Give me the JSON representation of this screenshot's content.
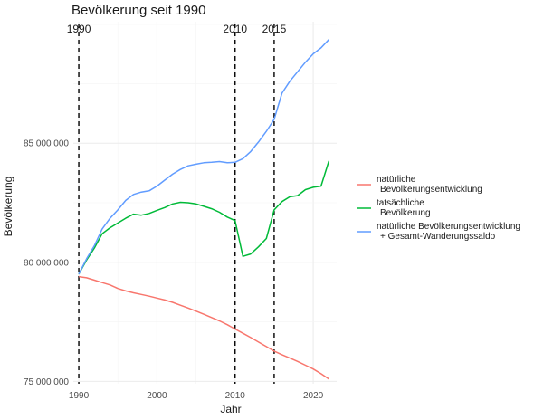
{
  "chart_data": {
    "type": "line",
    "title": "Bevölkerung seit 1990",
    "xlabel": "Jahr",
    "ylabel": "Bevölkerung",
    "xlim": [
      1989.3,
      2023
    ],
    "ylim": [
      74900000,
      90100000
    ],
    "x_ticks": [
      1990,
      2000,
      2010,
      2020
    ],
    "y_ticks": [
      75000000,
      80000000,
      85000000
    ],
    "y_tick_labels": [
      "75 000 000",
      "80 000 000",
      "85 000 000"
    ],
    "grid": true,
    "legend_position": "right",
    "vlines": [
      {
        "x": 1990,
        "label": "1990"
      },
      {
        "x": 2010,
        "label": "2010"
      },
      {
        "x": 2015,
        "label": "2015"
      }
    ],
    "series": [
      {
        "name": "natürliche Bevölkerungsentwicklung",
        "legend_lines": [
          "natürliche",
          "Bevölkerungsentwicklung"
        ],
        "color": "#F8766D",
        "x": [
          1990,
          1991,
          1992,
          1993,
          1994,
          1995,
          1996,
          1997,
          1998,
          1999,
          2000,
          2001,
          2002,
          2003,
          2004,
          2005,
          2006,
          2007,
          2008,
          2009,
          2010,
          2011,
          2012,
          2013,
          2014,
          2015,
          2016,
          2017,
          2018,
          2019,
          2020,
          2021,
          2022
        ],
        "values": [
          79400000,
          79350000,
          79250000,
          79150000,
          79050000,
          78900000,
          78800000,
          78720000,
          78650000,
          78580000,
          78500000,
          78420000,
          78320000,
          78200000,
          78080000,
          77950000,
          77820000,
          77680000,
          77540000,
          77380000,
          77200000,
          77020000,
          76840000,
          76650000,
          76460000,
          76270000,
          76120000,
          75980000,
          75840000,
          75680000,
          75520000,
          75320000,
          75100000
        ]
      },
      {
        "name": "tatsächliche Bevölkerung",
        "legend_lines": [
          "tatsächliche",
          "Bevölkerung"
        ],
        "color": "#00BA38",
        "x": [
          1990,
          1991,
          1992,
          1993,
          1994,
          1995,
          1996,
          1997,
          1998,
          1999,
          2000,
          2001,
          2002,
          2003,
          2004,
          2005,
          2006,
          2007,
          2008,
          2009,
          2010,
          2011,
          2012,
          2013,
          2014,
          2015,
          2016,
          2017,
          2018,
          2019,
          2020,
          2021,
          2022
        ],
        "values": [
          79500000,
          80100000,
          80600000,
          81200000,
          81450000,
          81650000,
          81850000,
          82020000,
          81980000,
          82050000,
          82180000,
          82300000,
          82450000,
          82520000,
          82500000,
          82450000,
          82350000,
          82250000,
          82100000,
          81900000,
          81750000,
          80250000,
          80350000,
          80650000,
          81000000,
          82200000,
          82550000,
          82750000,
          82800000,
          83050000,
          83150000,
          83200000,
          84250000
        ]
      },
      {
        "name": "natürliche Bevölkerungsentwicklung + Gesamt-Wanderungssaldo",
        "legend_lines": [
          "natürliche Bevölkerungsentwicklung",
          "+ Gesamt-Wanderungssaldo"
        ],
        "color": "#619CFF",
        "x": [
          1990,
          1991,
          1992,
          1993,
          1994,
          1995,
          1996,
          1997,
          1998,
          1999,
          2000,
          2001,
          2002,
          2003,
          2004,
          2005,
          2006,
          2007,
          2008,
          2009,
          2010,
          2011,
          2012,
          2013,
          2014,
          2015,
          2016,
          2017,
          2018,
          2019,
          2020,
          2021,
          2022
        ],
        "values": [
          79500000,
          80150000,
          80700000,
          81400000,
          81850000,
          82200000,
          82600000,
          82850000,
          82950000,
          83000000,
          83200000,
          83450000,
          83700000,
          83900000,
          84050000,
          84120000,
          84180000,
          84200000,
          84230000,
          84180000,
          84200000,
          84350000,
          84650000,
          85050000,
          85500000,
          86000000,
          87100000,
          87600000,
          88000000,
          88400000,
          88750000,
          89000000,
          89350000
        ]
      }
    ]
  }
}
